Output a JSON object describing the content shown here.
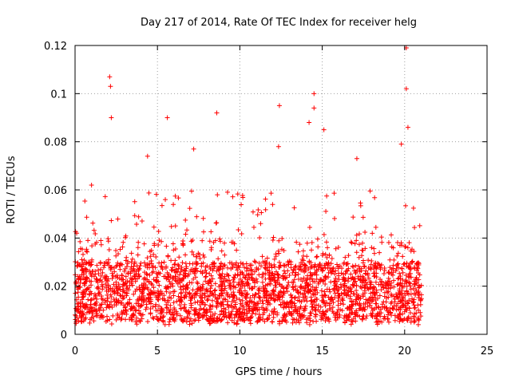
{
  "chart_data": {
    "type": "scatter",
    "title": "Day 217 of 2014, Rate Of TEC Index for receiver helg",
    "xlabel": "GPS time / hours",
    "ylabel": "ROTI / TECUs",
    "xlim": [
      0,
      25
    ],
    "ylim": [
      0,
      0.12
    ],
    "xticks": [
      0,
      5,
      10,
      15,
      20,
      25
    ],
    "yticks": [
      0,
      0.02,
      0.04,
      0.06,
      0.08,
      0.1,
      0.12
    ],
    "xtick_labels": [
      "0",
      "5",
      "10",
      "15",
      "20",
      "25"
    ],
    "ytick_labels": [
      "0",
      "0.02",
      "0.04",
      "0.06",
      "0.08",
      "0.1",
      "0.12"
    ],
    "grid": true,
    "marker": "+",
    "color": "#ff0000",
    "series": [
      {
        "name": "ROTI",
        "x_range": [
          0,
          21.05
        ],
        "typical_range": [
          0.005,
          0.03
        ],
        "notable_points": [
          {
            "x": 2.1,
            "y": 0.107
          },
          {
            "x": 2.15,
            "y": 0.103
          },
          {
            "x": 2.2,
            "y": 0.09
          },
          {
            "x": 5.6,
            "y": 0.09
          },
          {
            "x": 8.6,
            "y": 0.092
          },
          {
            "x": 12.4,
            "y": 0.095
          },
          {
            "x": 12.35,
            "y": 0.078
          },
          {
            "x": 14.5,
            "y": 0.1
          },
          {
            "x": 14.5,
            "y": 0.094
          },
          {
            "x": 14.2,
            "y": 0.088
          },
          {
            "x": 15.1,
            "y": 0.085
          },
          {
            "x": 17.1,
            "y": 0.073
          },
          {
            "x": 20.1,
            "y": 0.119
          },
          {
            "x": 20.1,
            "y": 0.102
          },
          {
            "x": 20.2,
            "y": 0.086
          },
          {
            "x": 19.8,
            "y": 0.079
          },
          {
            "x": 4.4,
            "y": 0.074
          },
          {
            "x": 7.2,
            "y": 0.077
          },
          {
            "x": 1.0,
            "y": 0.062
          },
          {
            "x": 0.1,
            "y": 0.042
          }
        ]
      }
    ]
  }
}
